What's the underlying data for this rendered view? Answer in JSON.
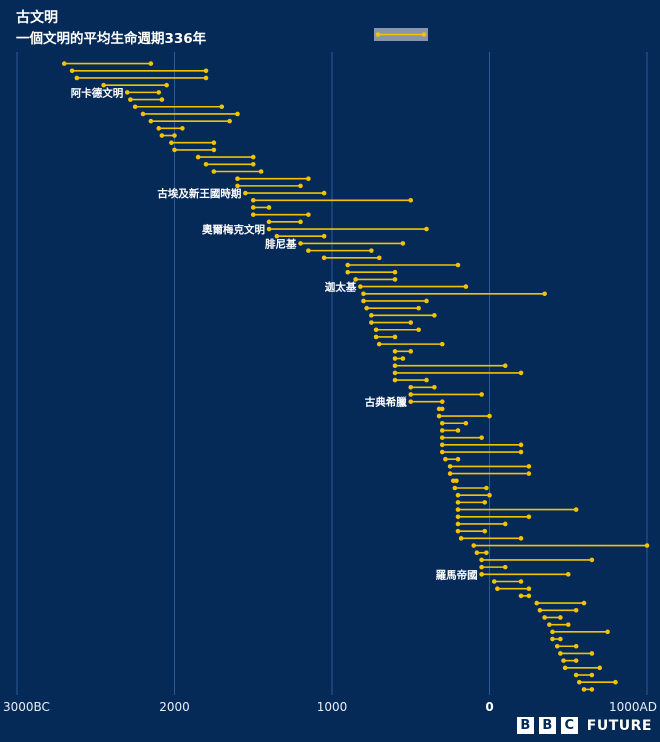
{
  "header": {
    "title": "古文明",
    "subtitle": "一個文明的平均生命週期336年"
  },
  "brand": {
    "bbc": [
      "B",
      "B",
      "C"
    ],
    "future": "FUTURE"
  },
  "colors": {
    "background": "#062a58",
    "bar": "#f2c300",
    "grid": "#2a5a9a",
    "legend_box": "#8a96a8"
  },
  "chart_data": {
    "type": "dumbbell",
    "x_axis": {
      "range": [
        -3000,
        1000
      ],
      "ticks": [
        {
          "value": -3000,
          "label": "3000BC"
        },
        {
          "value": -2000,
          "label": "2000"
        },
        {
          "value": -1000,
          "label": "1000"
        },
        {
          "value": 0,
          "label": "0"
        },
        {
          "value": 1000,
          "label": "1000AD"
        }
      ]
    },
    "grid": true,
    "legend": {
      "placement": "top-center",
      "marker": "dumbbell"
    },
    "intervals": [
      [
        -2700,
        -2150
      ],
      [
        -2650,
        -1800
      ],
      [
        -2620,
        -1800
      ],
      [
        -2450,
        -2050
      ],
      [
        -2300,
        -2100
      ],
      [
        -2280,
        -2080
      ],
      [
        -2250,
        -1700
      ],
      [
        -2200,
        -1600
      ],
      [
        -2150,
        -1650
      ],
      [
        -2100,
        -1950
      ],
      [
        -2080,
        -2000
      ],
      [
        -2020,
        -1750
      ],
      [
        -2000,
        -1750
      ],
      [
        -1850,
        -1500
      ],
      [
        -1800,
        -1500
      ],
      [
        -1750,
        -1450
      ],
      [
        -1600,
        -1150
      ],
      [
        -1600,
        -1200
      ],
      [
        -1550,
        -1050
      ],
      [
        -1500,
        -500
      ],
      [
        -1500,
        -1400
      ],
      [
        -1500,
        -1150
      ],
      [
        -1400,
        -1200
      ],
      [
        -1400,
        -400
      ],
      [
        -1350,
        -1050
      ],
      [
        -1200,
        -550
      ],
      [
        -1150,
        -750
      ],
      [
        -1050,
        -700
      ],
      [
        -900,
        -200
      ],
      [
        -900,
        -600
      ],
      [
        -850,
        -600
      ],
      [
        -820,
        -150
      ],
      [
        -800,
        350
      ],
      [
        -800,
        -400
      ],
      [
        -780,
        -450
      ],
      [
        -750,
        -350
      ],
      [
        -750,
        -500
      ],
      [
        -720,
        -450
      ],
      [
        -720,
        -600
      ],
      [
        -700,
        -300
      ],
      [
        -600,
        -500
      ],
      [
        -600,
        -550
      ],
      [
        -600,
        100
      ],
      [
        -600,
        200
      ],
      [
        -600,
        -400
      ],
      [
        -500,
        -350
      ],
      [
        -500,
        -50
      ],
      [
        -500,
        -300
      ],
      [
        -320,
        -300
      ],
      [
        -320,
        0
      ],
      [
        -300,
        -150
      ],
      [
        -300,
        -200
      ],
      [
        -300,
        -50
      ],
      [
        -300,
        200
      ],
      [
        -300,
        200
      ],
      [
        -280,
        -200
      ],
      [
        -250,
        250
      ],
      [
        -250,
        250
      ],
      [
        -230,
        -210
      ],
      [
        -220,
        -20
      ],
      [
        -200,
        0
      ],
      [
        -200,
        -30
      ],
      [
        -200,
        550
      ],
      [
        -200,
        250
      ],
      [
        -200,
        100
      ],
      [
        -200,
        -30
      ],
      [
        -180,
        200
      ],
      [
        -100,
        1000
      ],
      [
        -80,
        -20
      ],
      [
        -50,
        650
      ],
      [
        -50,
        100
      ],
      [
        -50,
        500
      ],
      [
        30,
        200
      ],
      [
        50,
        250
      ],
      [
        200,
        250
      ],
      [
        300,
        600
      ],
      [
        320,
        550
      ],
      [
        350,
        450
      ],
      [
        380,
        500
      ],
      [
        400,
        750
      ],
      [
        400,
        450
      ],
      [
        430,
        550
      ],
      [
        450,
        650
      ],
      [
        470,
        550
      ],
      [
        480,
        700
      ],
      [
        550,
        650
      ],
      [
        570,
        800
      ],
      [
        600,
        650
      ]
    ],
    "annotations": [
      {
        "label": "阿卡德文明",
        "row": 4
      },
      {
        "label": "古埃及新王國時期",
        "row": 18
      },
      {
        "label": "奧爾梅克文明",
        "row": 23
      },
      {
        "label": "腓尼基",
        "row": 25
      },
      {
        "label": "迦太基",
        "row": 31
      },
      {
        "label": "古典希臘",
        "row": 47
      },
      {
        "label": "羅馬帝國",
        "row": 71
      }
    ]
  }
}
